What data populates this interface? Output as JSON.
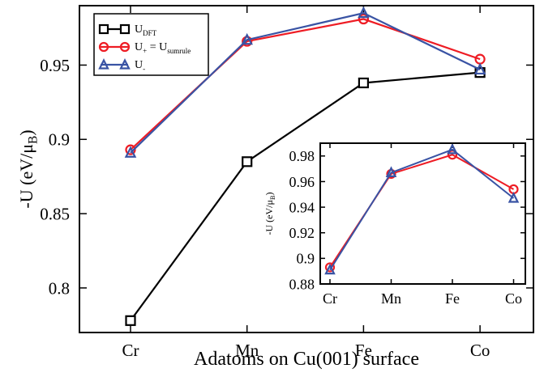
{
  "chart_data": [
    {
      "type": "line",
      "categories": [
        "Cr",
        "Mn",
        "Fe",
        "Co"
      ],
      "xlabel": "Adatoms on Cu(001) surface",
      "ylabel_main": "-U (eV/μ",
      "ylabel_sub": "B",
      "ylim": [
        0.77,
        0.99
      ],
      "yticks": [
        0.8,
        0.85,
        0.9,
        0.95
      ],
      "ytick_labels": [
        "0.8",
        "0.85",
        "0.9",
        "0.95"
      ],
      "grid": false,
      "legend_position": "top-left",
      "series": [
        {
          "legend_main": "U",
          "legend_sub": "DFT",
          "legend_rest": "",
          "legend_rest_sub": "",
          "color": "#000000",
          "marker": "square",
          "values": [
            0.778,
            0.885,
            0.938,
            0.945
          ]
        },
        {
          "legend_main": "U",
          "legend_sub": "+",
          "legend_rest": " = U",
          "legend_rest_sub": "sumrule",
          "color": "#ee1c24",
          "marker": "circle",
          "values": [
            0.893,
            0.966,
            0.981,
            0.954
          ]
        },
        {
          "legend_main": "U",
          "legend_sub": "-",
          "legend_rest": "",
          "legend_rest_sub": "",
          "color": "#3953a4",
          "marker": "triangle",
          "values": [
            0.891,
            0.967,
            0.985,
            0.947
          ]
        }
      ]
    },
    {
      "type": "line",
      "categories": [
        "Cr",
        "Mn",
        "Fe",
        "Co"
      ],
      "ylabel_main": "-U (eV/μ",
      "ylabel_sub": "B",
      "ylim": [
        0.88,
        0.99
      ],
      "yticks": [
        0.88,
        0.9,
        0.92,
        0.94,
        0.96,
        0.98
      ],
      "ytick_labels": [
        "0.88",
        "0.9",
        "0.92",
        "0.94",
        "0.96",
        "0.98"
      ],
      "grid": false,
      "legend_position": "none",
      "series": [
        {
          "color": "#ee1c24",
          "marker": "circle",
          "values": [
            0.893,
            0.966,
            0.981,
            0.954
          ]
        },
        {
          "color": "#3953a4",
          "marker": "triangle",
          "values": [
            0.891,
            0.967,
            0.985,
            0.947
          ]
        }
      ]
    }
  ]
}
